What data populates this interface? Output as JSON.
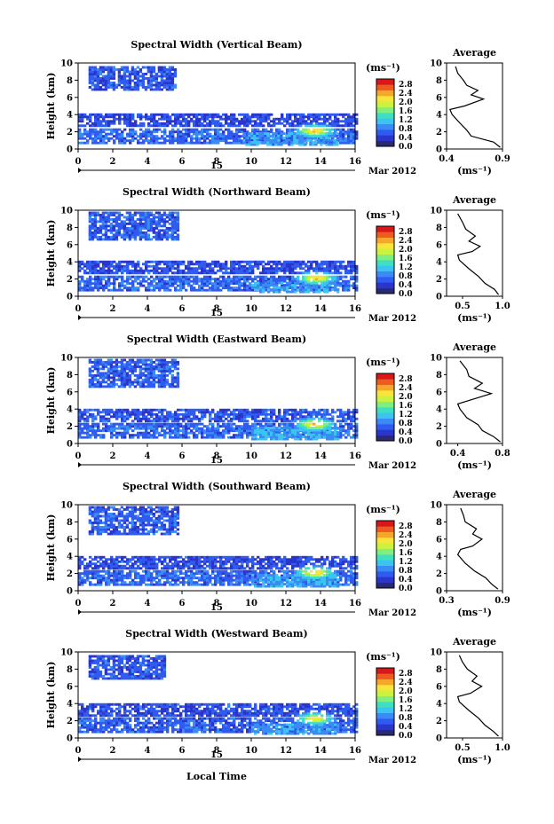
{
  "figure": {
    "xaxis_label": "Local Time",
    "date_label": "Mar 2012",
    "date_day": "15"
  },
  "colorbar": {
    "unit": "(ms⁻¹)",
    "ticks": [
      "2.8",
      "2.4",
      "2.0",
      "1.6",
      "1.2",
      "0.8",
      "0.4",
      "0.0"
    ],
    "colors": [
      "#2a2a72",
      "#2b35c9",
      "#2f5bf0",
      "#3a8cf5",
      "#3cc4f0",
      "#3fe0c2",
      "#7ef082",
      "#c9f33f",
      "#f7e53a",
      "#f7a52c",
      "#ee5a22",
      "#d8171a"
    ]
  },
  "chart_data": [
    {
      "type": "heatmap",
      "title": "Spectral Width (Vertical Beam)",
      "xlabel": "",
      "ylabel": "Height (km)",
      "xlim": [
        0,
        16
      ],
      "ylim": [
        0,
        10
      ],
      "xticks": [
        "0",
        "2",
        "4",
        "6",
        "8",
        "10",
        "12",
        "14",
        "16"
      ],
      "yticks": [
        "0",
        "2",
        "4",
        "6",
        "8",
        "10"
      ],
      "layers": [
        {
          "x0": 0.6,
          "x1": 5.6,
          "y0": 6.8,
          "y1": 9.6,
          "level": 0.5
        },
        {
          "x0": 0.0,
          "x1": 16.0,
          "y0": 2.6,
          "y1": 4.0,
          "level": 0.4
        },
        {
          "x0": 0.0,
          "x1": 16.0,
          "y0": 0.6,
          "y1": 2.4,
          "level": 0.6
        },
        {
          "x0": 9.5,
          "x1": 15.0,
          "y0": 0.4,
          "y1": 1.8,
          "level": 0.9
        }
      ],
      "hotspot": {
        "x": 13.6,
        "y": 2.0,
        "value": 2.6
      },
      "inset": {
        "title": "Average",
        "xlabel": "(ms⁻¹)",
        "xticks": [
          "0.4",
          "0.9"
        ],
        "xlim": [
          0.4,
          0.9
        ],
        "profile": [
          [
            0.88,
            0.2
          ],
          [
            0.82,
            0.8
          ],
          [
            0.62,
            1.5
          ],
          [
            0.58,
            2.2
          ],
          [
            0.52,
            3.0
          ],
          [
            0.45,
            4.0
          ],
          [
            0.43,
            4.6
          ],
          [
            0.56,
            5.0
          ],
          [
            0.73,
            5.8
          ],
          [
            0.62,
            6.3
          ],
          [
            0.68,
            6.8
          ],
          [
            0.58,
            7.4
          ],
          [
            0.55,
            8.0
          ],
          [
            0.5,
            8.8
          ],
          [
            0.48,
            9.6
          ]
        ]
      }
    },
    {
      "type": "heatmap",
      "title": "Spectral Width (Northward Beam)",
      "xlabel": "",
      "ylabel": "Height (km)",
      "xlim": [
        0,
        16
      ],
      "ylim": [
        0,
        10
      ],
      "xticks": [
        "0",
        "2",
        "4",
        "6",
        "8",
        "10",
        "12",
        "14",
        "16"
      ],
      "yticks": [
        "0",
        "2",
        "4",
        "6",
        "8",
        "10"
      ],
      "layers": [
        {
          "x0": 0.6,
          "x1": 5.8,
          "y0": 6.5,
          "y1": 9.6,
          "level": 0.55
        },
        {
          "x0": 0.0,
          "x1": 16.0,
          "y0": 2.6,
          "y1": 4.0,
          "level": 0.45
        },
        {
          "x0": 0.0,
          "x1": 16.0,
          "y0": 0.6,
          "y1": 2.4,
          "level": 0.6
        },
        {
          "x0": 10.0,
          "x1": 15.0,
          "y0": 0.4,
          "y1": 1.6,
          "level": 0.9
        }
      ],
      "hotspot": {
        "x": 13.7,
        "y": 2.0,
        "value": 2.6
      },
      "inset": {
        "title": "Average",
        "xlabel": "(ms⁻¹)",
        "xticks": [
          "0.5",
          "1.0"
        ],
        "xlim": [
          0.3,
          1.0
        ],
        "profile": [
          [
            0.95,
            0.2
          ],
          [
            0.9,
            0.8
          ],
          [
            0.78,
            1.5
          ],
          [
            0.7,
            2.3
          ],
          [
            0.58,
            3.2
          ],
          [
            0.46,
            4.2
          ],
          [
            0.44,
            4.8
          ],
          [
            0.62,
            5.2
          ],
          [
            0.72,
            5.8
          ],
          [
            0.58,
            6.4
          ],
          [
            0.66,
            7.0
          ],
          [
            0.54,
            7.8
          ],
          [
            0.5,
            8.6
          ],
          [
            0.44,
            9.6
          ]
        ]
      }
    },
    {
      "type": "heatmap",
      "title": "Spectral Width (Eastward Beam)",
      "xlabel": "",
      "ylabel": "Height (km)",
      "xlim": [
        0,
        16
      ],
      "ylim": [
        0,
        10
      ],
      "xticks": [
        "0",
        "2",
        "4",
        "6",
        "8",
        "10",
        "12",
        "14",
        "16"
      ],
      "yticks": [
        "0",
        "2",
        "4",
        "6",
        "8",
        "10"
      ],
      "layers": [
        {
          "x0": 0.6,
          "x1": 5.8,
          "y0": 6.5,
          "y1": 9.6,
          "level": 0.55
        },
        {
          "x0": 0.0,
          "x1": 16.0,
          "y0": 2.5,
          "y1": 4.0,
          "level": 0.5
        },
        {
          "x0": 0.0,
          "x1": 16.0,
          "y0": 0.6,
          "y1": 2.4,
          "level": 0.6
        },
        {
          "x0": 10.0,
          "x1": 15.0,
          "y0": 0.4,
          "y1": 1.8,
          "level": 0.95
        }
      ],
      "hotspot": {
        "x": 13.6,
        "y": 2.1,
        "value": 2.6
      },
      "inset": {
        "title": "Average",
        "xlabel": "(ms⁻¹)",
        "xticks": [
          "0.4",
          "0.8"
        ],
        "xlim": [
          0.3,
          0.8
        ],
        "profile": [
          [
            0.78,
            0.2
          ],
          [
            0.72,
            0.8
          ],
          [
            0.62,
            1.5
          ],
          [
            0.58,
            2.2
          ],
          [
            0.48,
            3.0
          ],
          [
            0.42,
            4.0
          ],
          [
            0.4,
            4.6
          ],
          [
            0.55,
            5.2
          ],
          [
            0.7,
            5.8
          ],
          [
            0.55,
            6.4
          ],
          [
            0.62,
            7.0
          ],
          [
            0.5,
            7.8
          ],
          [
            0.48,
            8.6
          ],
          [
            0.42,
            9.6
          ]
        ]
      }
    },
    {
      "type": "heatmap",
      "title": "Spectral Width (Southward Beam)",
      "xlabel": "",
      "ylabel": "Height (km)",
      "xlim": [
        0,
        16
      ],
      "ylim": [
        0,
        10
      ],
      "xticks": [
        "0",
        "2",
        "4",
        "6",
        "8",
        "10",
        "12",
        "14",
        "16"
      ],
      "yticks": [
        "0",
        "2",
        "4",
        "6",
        "8",
        "10"
      ],
      "layers": [
        {
          "x0": 0.6,
          "x1": 5.8,
          "y0": 6.5,
          "y1": 9.6,
          "level": 0.55
        },
        {
          "x0": 0.0,
          "x1": 16.0,
          "y0": 2.5,
          "y1": 4.0,
          "level": 0.45
        },
        {
          "x0": 0.0,
          "x1": 16.0,
          "y0": 0.6,
          "y1": 2.4,
          "level": 0.6
        },
        {
          "x0": 10.0,
          "x1": 15.0,
          "y0": 0.4,
          "y1": 1.8,
          "level": 0.95
        }
      ],
      "hotspot": {
        "x": 13.6,
        "y": 2.0,
        "value": 2.6
      },
      "inset": {
        "title": "Average",
        "xlabel": "(ms⁻¹)",
        "xticks": [
          "0.3",
          "0.9"
        ],
        "xlim": [
          0.3,
          0.9
        ],
        "profile": [
          [
            0.85,
            0.2
          ],
          [
            0.78,
            0.8
          ],
          [
            0.72,
            1.5
          ],
          [
            0.6,
            2.3
          ],
          [
            0.5,
            3.2
          ],
          [
            0.42,
            4.2
          ],
          [
            0.45,
            4.8
          ],
          [
            0.58,
            5.2
          ],
          [
            0.68,
            6.0
          ],
          [
            0.58,
            6.6
          ],
          [
            0.62,
            7.2
          ],
          [
            0.5,
            8.0
          ],
          [
            0.48,
            8.8
          ],
          [
            0.45,
            9.6
          ]
        ]
      }
    },
    {
      "type": "heatmap",
      "title": "Spectral Width (Westward Beam)",
      "xlabel": "Local Time",
      "ylabel": "Height (km)",
      "xlim": [
        0,
        16
      ],
      "ylim": [
        0,
        10
      ],
      "xticks": [
        "0",
        "2",
        "4",
        "6",
        "8",
        "10",
        "12",
        "14",
        "16"
      ],
      "yticks": [
        "0",
        "2",
        "4",
        "6",
        "8",
        "10"
      ],
      "layers": [
        {
          "x0": 0.6,
          "x1": 5.0,
          "y0": 6.8,
          "y1": 9.6,
          "level": 0.5
        },
        {
          "x0": 0.0,
          "x1": 16.0,
          "y0": 2.5,
          "y1": 4.0,
          "level": 0.45
        },
        {
          "x0": 0.0,
          "x1": 16.0,
          "y0": 0.6,
          "y1": 2.4,
          "level": 0.55
        },
        {
          "x0": 10.0,
          "x1": 15.0,
          "y0": 0.4,
          "y1": 1.6,
          "level": 0.85
        }
      ],
      "hotspot": {
        "x": 13.6,
        "y": 2.1,
        "value": 2.4
      },
      "inset": {
        "title": "Average",
        "xlabel": "(ms⁻¹)",
        "xticks": [
          "0.5",
          "1.0"
        ],
        "xlim": [
          0.3,
          1.0
        ],
        "profile": [
          [
            0.95,
            0.2
          ],
          [
            0.88,
            0.8
          ],
          [
            0.78,
            1.5
          ],
          [
            0.7,
            2.3
          ],
          [
            0.58,
            3.2
          ],
          [
            0.46,
            4.2
          ],
          [
            0.44,
            4.8
          ],
          [
            0.6,
            5.2
          ],
          [
            0.74,
            6.0
          ],
          [
            0.62,
            6.6
          ],
          [
            0.68,
            7.2
          ],
          [
            0.56,
            8.0
          ],
          [
            0.5,
            8.8
          ],
          [
            0.46,
            9.6
          ]
        ]
      }
    }
  ]
}
